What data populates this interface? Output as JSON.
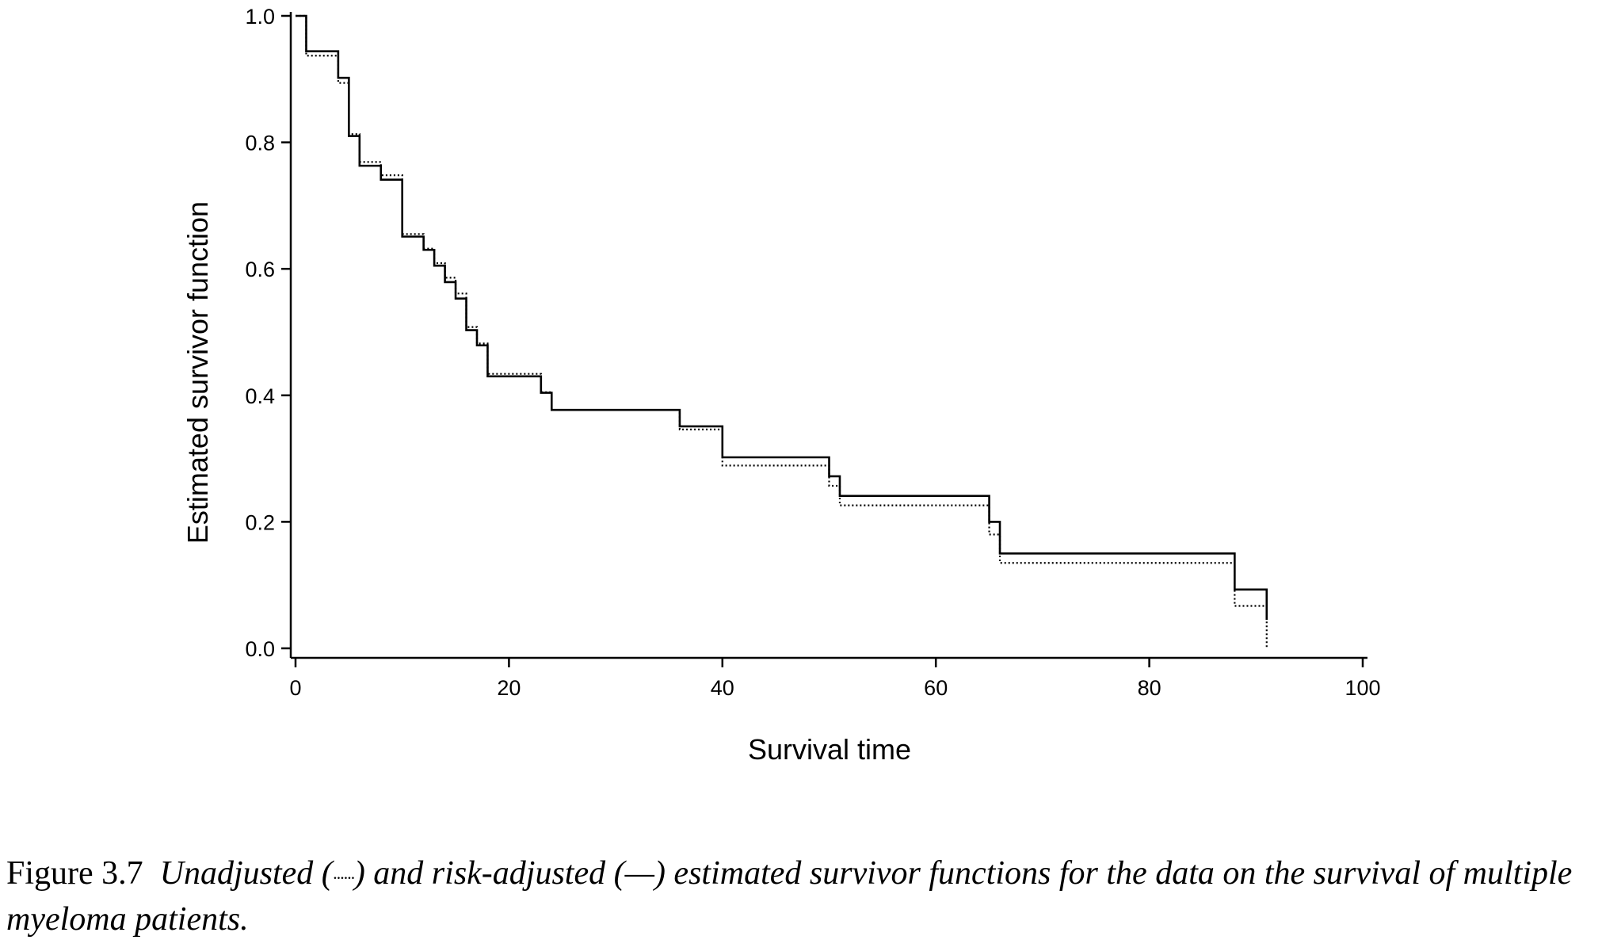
{
  "chart_data": {
    "type": "line",
    "xlabel": "Survival time",
    "ylabel": "Estimated survivor function",
    "xlim": [
      0,
      100
    ],
    "ylim": [
      0,
      1
    ],
    "x_ticks": [
      "0",
      "20",
      "40",
      "60",
      "80",
      "100"
    ],
    "y_ticks": [
      "0.0",
      "0.2",
      "0.4",
      "0.6",
      "0.8",
      "1.0"
    ],
    "grid": false,
    "legend": "none",
    "series": [
      {
        "style": "solid",
        "x": [
          0,
          1,
          4,
          5,
          6,
          8,
          10,
          12,
          13,
          14,
          15,
          16,
          17,
          18,
          23,
          24,
          36,
          40,
          50,
          51,
          65,
          66,
          88,
          91
        ],
        "y": [
          1.0,
          0.944,
          0.902,
          0.81,
          0.763,
          0.741,
          0.651,
          0.63,
          0.605,
          0.579,
          0.553,
          0.503,
          0.479,
          0.43,
          0.404,
          0.377,
          0.351,
          0.302,
          0.272,
          0.241,
          0.2,
          0.15,
          0.093,
          0.045
        ]
      },
      {
        "style": "dotted",
        "x": [
          0,
          1,
          4,
          5,
          6,
          8,
          10,
          12,
          13,
          14,
          15,
          16,
          17,
          18,
          23,
          24,
          36,
          40,
          50,
          51,
          65,
          66,
          88,
          91
        ],
        "y": [
          1.0,
          0.937,
          0.894,
          0.813,
          0.769,
          0.748,
          0.655,
          0.632,
          0.609,
          0.586,
          0.561,
          0.508,
          0.482,
          0.434,
          0.405,
          0.377,
          0.346,
          0.289,
          0.257,
          0.226,
          0.18,
          0.135,
          0.067,
          0.0
        ]
      }
    ]
  },
  "caption": {
    "label": "Figure 3.7",
    "text_part1": "Unadjusted (",
    "dots": "······",
    "text_part2": ") and risk-adjusted (—) estimated survivor functions for the data on the survival of multiple myeloma patients."
  }
}
